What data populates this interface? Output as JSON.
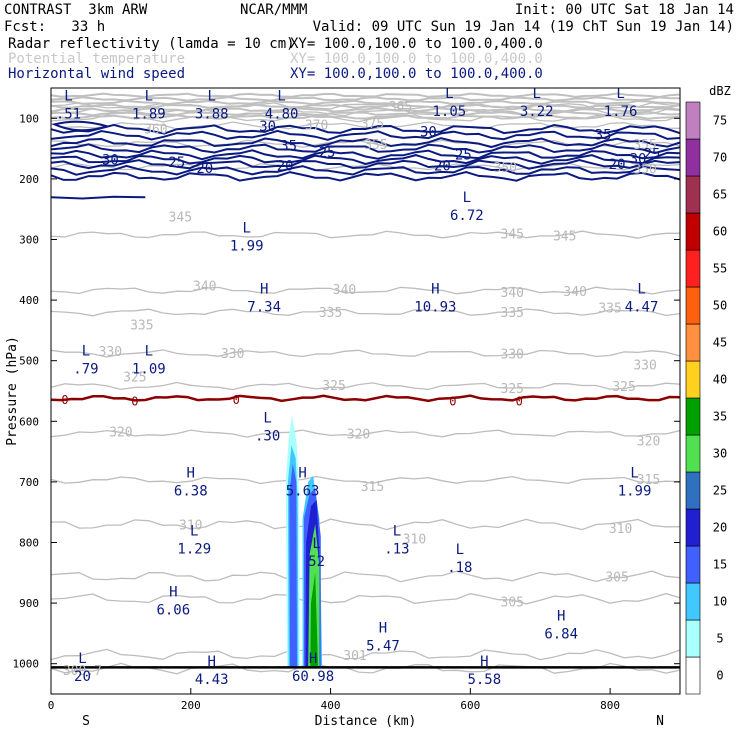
{
  "header": {
    "model": "CONTRAST  3km ARW",
    "center": "NCAR/MMM",
    "init": "Init: 00 UTC Sat 18 Jan 14",
    "fcst": "Fcst:   33 h",
    "valid": "Valid: 09 UTC Sun 19 Jan 14 (19 ChT Sun 19 Jan 14)"
  },
  "fields": [
    {
      "name": "Radar reflectivity (lamda = 10 cm)",
      "xy": "XY= 100.0,100.0 to 100.0,400.0",
      "color": "#000000"
    },
    {
      "name": "Potential temperature",
      "xy": "XY= 100.0,100.0 to 100.0,400.0",
      "color": "#c8c8c8"
    },
    {
      "name": "Horizontal wind speed",
      "xy": "XY= 100.0,100.0 to 100.0,400.0",
      "color": "#0a1a80"
    }
  ],
  "chart_data": {
    "type": "cross-section",
    "ylabel": "Pressure (hPa)",
    "xlabel": "Distance (km)",
    "x_ticks": [
      0,
      200,
      400,
      600,
      800
    ],
    "y_ticks": [
      100,
      200,
      300,
      400,
      500,
      600,
      700,
      800,
      900,
      1000
    ],
    "xlim": [
      0,
      900
    ],
    "ylim": [
      1050,
      50
    ],
    "end_labels": {
      "left": "S",
      "right": "N"
    },
    "colorbar": {
      "title": "dBZ",
      "levels": [
        "0",
        "5",
        "10",
        "15",
        "20",
        "25",
        "30",
        "35",
        "40",
        "45",
        "50",
        "55",
        "60",
        "65",
        "70",
        "75"
      ],
      "colors": [
        "#ffffff",
        "#aaffff",
        "#40c8ff",
        "#4060ff",
        "#2020d0",
        "#3070c0",
        "#50e050",
        "#00a000",
        "#ffd020",
        "#ff9040",
        "#ff6010",
        "#ff2020",
        "#c00000",
        "#a03050",
        "#9030a0",
        "#c080c0"
      ]
    },
    "theta_labels": [
      {
        "text": "375",
        "x": 460,
        "p": 108
      },
      {
        "text": "370",
        "x": 380,
        "p": 110
      },
      {
        "text": "365",
        "x": 500,
        "p": 80
      },
      {
        "text": "360",
        "x": 150,
        "p": 117
      },
      {
        "text": "355",
        "x": 465,
        "p": 142
      },
      {
        "text": "355",
        "x": 850,
        "p": 142
      },
      {
        "text": "350",
        "x": 650,
        "p": 180
      },
      {
        "text": "350",
        "x": 850,
        "p": 183
      },
      {
        "text": "345",
        "x": 185,
        "p": 262
      },
      {
        "text": "345",
        "x": 660,
        "p": 290
      },
      {
        "text": "345",
        "x": 735,
        "p": 293
      },
      {
        "text": "340",
        "x": 220,
        "p": 376
      },
      {
        "text": "340",
        "x": 420,
        "p": 382
      },
      {
        "text": "340",
        "x": 660,
        "p": 387
      },
      {
        "text": "340",
        "x": 750,
        "p": 385
      },
      {
        "text": "335",
        "x": 130,
        "p": 440
      },
      {
        "text": "335",
        "x": 400,
        "p": 420
      },
      {
        "text": "335",
        "x": 660,
        "p": 420
      },
      {
        "text": "335",
        "x": 800,
        "p": 412
      },
      {
        "text": "330",
        "x": 85,
        "p": 484
      },
      {
        "text": "330",
        "x": 260,
        "p": 487
      },
      {
        "text": "330",
        "x": 660,
        "p": 488
      },
      {
        "text": "330",
        "x": 850,
        "p": 506
      },
      {
        "text": "325",
        "x": 120,
        "p": 526
      },
      {
        "text": "325",
        "x": 405,
        "p": 540
      },
      {
        "text": "325",
        "x": 660,
        "p": 545
      },
      {
        "text": "325",
        "x": 820,
        "p": 542
      },
      {
        "text": "320",
        "x": 100,
        "p": 617
      },
      {
        "text": "320",
        "x": 440,
        "p": 620
      },
      {
        "text": "320",
        "x": 855,
        "p": 632
      },
      {
        "text": "315",
        "x": 460,
        "p": 707
      },
      {
        "text": "315",
        "x": 855,
        "p": 695
      },
      {
        "text": "310",
        "x": 200,
        "p": 770
      },
      {
        "text": "310",
        "x": 520,
        "p": 793
      },
      {
        "text": "310",
        "x": 815,
        "p": 776
      },
      {
        "text": "305",
        "x": 660,
        "p": 897
      },
      {
        "text": "305",
        "x": 810,
        "p": 856
      },
      {
        "text": "301",
        "x": 435,
        "p": 986
      },
      {
        "text": "300.7",
        "x": 45,
        "p": 1010
      }
    ],
    "wind_labels": [
      {
        "text": "35",
        "x": 340,
        "p": 145
      },
      {
        "text": "35",
        "x": 790,
        "p": 127
      },
      {
        "text": "30",
        "x": 85,
        "p": 168
      },
      {
        "text": "30",
        "x": 310,
        "p": 113
      },
      {
        "text": "30",
        "x": 540,
        "p": 122
      },
      {
        "text": "30",
        "x": 840,
        "p": 166
      },
      {
        "text": "25",
        "x": 180,
        "p": 172
      },
      {
        "text": "25",
        "x": 395,
        "p": 156
      },
      {
        "text": "25",
        "x": 590,
        "p": 160
      },
      {
        "text": "25",
        "x": 860,
        "p": 158
      },
      {
        "text": "20",
        "x": 220,
        "p": 182
      },
      {
        "text": "20",
        "x": 335,
        "p": 178
      },
      {
        "text": "20",
        "x": 560,
        "p": 178
      },
      {
        "text": "20",
        "x": 810,
        "p": 175
      }
    ],
    "extrema": [
      {
        "kind": "L",
        "value": ".51",
        "x": 25,
        "p": 84
      },
      {
        "kind": "L",
        "value": "1.89",
        "x": 140,
        "p": 84
      },
      {
        "kind": "L",
        "value": "3.88",
        "x": 230,
        "p": 84
      },
      {
        "kind": "L",
        "value": "4.80",
        "x": 330,
        "p": 84
      },
      {
        "kind": "L",
        "value": "1.05",
        "x": 570,
        "p": 80
      },
      {
        "kind": "L",
        "value": "3.22",
        "x": 695,
        "p": 80
      },
      {
        "kind": "L",
        "value": "1.76",
        "x": 815,
        "p": 80
      },
      {
        "kind": "L",
        "value": "1.99",
        "x": 280,
        "p": 302
      },
      {
        "kind": "L",
        "value": "6.72",
        "x": 595,
        "p": 251
      },
      {
        "kind": "H",
        "value": "7.34",
        "x": 305,
        "p": 402
      },
      {
        "kind": "H",
        "value": "10.93",
        "x": 550,
        "p": 402
      },
      {
        "kind": "L",
        "value": "4.47",
        "x": 845,
        "p": 402
      },
      {
        "kind": "L",
        "value": ".79",
        "x": 50,
        "p": 505
      },
      {
        "kind": "L",
        "value": "1.09",
        "x": 140,
        "p": 505
      },
      {
        "kind": "L",
        "value": ".30",
        "x": 310,
        "p": 615
      },
      {
        "kind": "H",
        "value": "6.38",
        "x": 200,
        "p": 706
      },
      {
        "kind": "H",
        "value": "5.63",
        "x": 360,
        "p": 706
      },
      {
        "kind": "L",
        "value": "1.99",
        "x": 835,
        "p": 706
      },
      {
        "kind": "L",
        "value": "1.29",
        "x": 205,
        "p": 802
      },
      {
        "kind": "L",
        "value": "52",
        "x": 380,
        "p": 822
      },
      {
        "kind": "L",
        "value": ".13",
        "x": 495,
        "p": 802
      },
      {
        "kind": "L",
        "value": ".18",
        "x": 585,
        "p": 832
      },
      {
        "kind": "H",
        "value": "6.06",
        "x": 175,
        "p": 902
      },
      {
        "kind": "H",
        "value": "5.47",
        "x": 475,
        "p": 962
      },
      {
        "kind": "H",
        "value": "6.84",
        "x": 730,
        "p": 942
      },
      {
        "kind": "L",
        "value": "20",
        "x": 45,
        "p": 1012
      },
      {
        "kind": "H",
        "value": "4.43",
        "x": 230,
        "p": 1017
      },
      {
        "kind": "H",
        "value": "60.98",
        "x": 375,
        "p": 1012
      },
      {
        "kind": "H",
        "value": "5.58",
        "x": 620,
        "p": 1017
      }
    ],
    "zero_labels": [
      {
        "text": "0",
        "x": 20,
        "p": 565
      },
      {
        "text": "0",
        "x": 120,
        "p": 567
      },
      {
        "text": "0",
        "x": 265,
        "p": 565
      },
      {
        "text": "0",
        "x": 575,
        "p": 567
      },
      {
        "text": "0",
        "x": 670,
        "p": 567
      }
    ]
  }
}
